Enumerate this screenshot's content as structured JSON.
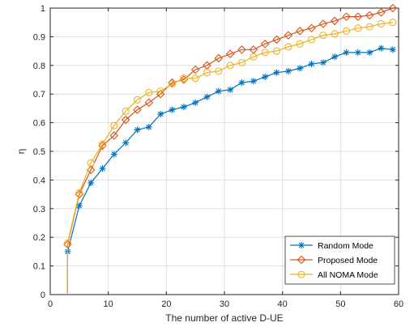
{
  "chart_data": {
    "type": "line",
    "xlabel": "The number of active D-UE",
    "ylabel": "η",
    "xlim": [
      0,
      60
    ],
    "ylim": [
      0,
      1
    ],
    "xticks": [
      0,
      10,
      20,
      30,
      40,
      50,
      60
    ],
    "yticks": [
      0,
      0.1,
      0.2,
      0.3,
      0.4,
      0.5,
      0.6,
      0.7,
      0.8,
      0.9,
      1
    ],
    "grid": true,
    "legend_position": "bottom-right",
    "x": [
      3,
      5,
      7,
      9,
      11,
      13,
      15,
      17,
      19,
      21,
      23,
      25,
      27,
      29,
      31,
      33,
      35,
      37,
      39,
      41,
      43,
      45,
      47,
      49,
      51,
      53,
      55,
      57,
      59
    ],
    "series": [
      {
        "name": "Random Mode",
        "color": "#0072BD",
        "marker": "asterisk",
        "values": [
          0.15,
          0.31,
          0.39,
          0.44,
          0.49,
          0.53,
          0.575,
          0.585,
          0.63,
          0.645,
          0.655,
          0.67,
          0.69,
          0.71,
          0.715,
          0.74,
          0.745,
          0.76,
          0.775,
          0.78,
          0.79,
          0.805,
          0.81,
          0.83,
          0.845,
          0.845,
          0.845,
          0.86,
          0.855
        ]
      },
      {
        "name": "Proposed Mode",
        "color": "#D95319",
        "marker": "diamond",
        "values": [
          0.175,
          0.35,
          0.435,
          0.52,
          0.555,
          0.61,
          0.645,
          0.67,
          0.7,
          0.74,
          0.75,
          0.785,
          0.8,
          0.825,
          0.84,
          0.855,
          0.855,
          0.875,
          0.89,
          0.905,
          0.92,
          0.93,
          0.945,
          0.955,
          0.97,
          0.97,
          0.975,
          0.985,
          1.0
        ]
      },
      {
        "name": "All NOMA Mode",
        "color": "#EDB120",
        "marker": "circle",
        "values": [
          0.18,
          0.355,
          0.46,
          0.525,
          0.59,
          0.64,
          0.68,
          0.705,
          0.71,
          0.735,
          0.755,
          0.755,
          0.775,
          0.78,
          0.8,
          0.81,
          0.83,
          0.845,
          0.85,
          0.865,
          0.875,
          0.89,
          0.905,
          0.91,
          0.92,
          0.93,
          0.935,
          0.945,
          0.95
        ]
      }
    ]
  }
}
